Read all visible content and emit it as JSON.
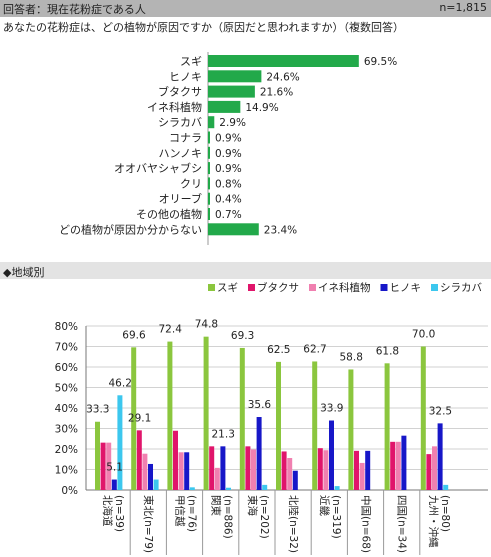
{
  "header": {
    "respondents_label": "回答者：現在花粉症である人",
    "n_label": "n=1,815"
  },
  "question": "あなたの花粉症は、どの植物が原因ですか（原因だと思われますか）（複数回答）",
  "section2_title": "◆地域別",
  "colors": {
    "green": "#22a94a",
    "sugi": "#8bc63e",
    "butakusa": "#e0156b",
    "ine": "#f080b0",
    "hinoki": "#1717c8",
    "shirakaba": "#3cc7ee"
  },
  "chart_data": [
    {
      "type": "bar",
      "orientation": "horizontal",
      "categories": [
        "スギ",
        "ヒノキ",
        "ブタクサ",
        "イネ科植物",
        "シラカバ",
        "コナラ",
        "ハンノキ",
        "オオバヤシャブシ",
        "クリ",
        "オリーブ",
        "その他の植物",
        "どの植物が原因か分からない"
      ],
      "values": [
        69.5,
        24.6,
        21.6,
        14.9,
        2.9,
        0.9,
        0.9,
        0.9,
        0.8,
        0.4,
        0.7,
        23.4
      ],
      "value_labels": [
        "69.5%",
        "24.6%",
        "21.6%",
        "14.9%",
        "2.9%",
        "0.9%",
        "0.9%",
        "0.9%",
        "0.8%",
        "0.4%",
        "0.7%",
        "23.4%"
      ],
      "xlim": [
        0,
        100
      ]
    },
    {
      "type": "bar",
      "orientation": "vertical",
      "ylim": [
        0,
        80
      ],
      "yticks": [
        "0%",
        "10%",
        "20%",
        "30%",
        "40%",
        "50%",
        "60%",
        "70%",
        "80%"
      ],
      "categories": [
        "北海道(n=39)",
        "東北(n=79)",
        "甲信越(n=76)",
        "関東(n=886)",
        "東海(n=202)",
        "北陸(n=32)",
        "近畿(n=319)",
        "中国(n=68)",
        "四国(n=34)",
        "九州・沖縄(n=80)"
      ],
      "category_labels": [
        [
          "北海道",
          "(n=39)"
        ],
        [
          "東北(n=79)"
        ],
        [
          "甲信越",
          "(n=76)"
        ],
        [
          "関東",
          "(n=886)"
        ],
        [
          "東海",
          "(n=202)"
        ],
        [
          "北陸(n=32)"
        ],
        [
          "近畿",
          "(n=319)"
        ],
        [
          "中国(n=68)"
        ],
        [
          "四国(n=34)"
        ],
        [
          "九州・沖縄",
          "(n=80)"
        ]
      ],
      "series": [
        {
          "name": "スギ",
          "values": [
            33.3,
            69.6,
            72.4,
            74.8,
            69.3,
            62.5,
            62.7,
            58.8,
            61.8,
            70.0
          ]
        },
        {
          "name": "ブタクサ",
          "values": [
            23.1,
            29.1,
            28.9,
            21.3,
            21.3,
            18.8,
            20.4,
            19.1,
            23.5,
            17.5
          ]
        },
        {
          "name": "イネ科植物",
          "values": [
            23.1,
            17.7,
            18.4,
            10.8,
            19.8,
            15.6,
            19.4,
            13.2,
            23.5,
            21.3
          ]
        },
        {
          "name": "ヒノキ",
          "values": [
            5.1,
            12.7,
            18.4,
            21.3,
            35.6,
            9.4,
            33.9,
            19.1,
            26.5,
            32.5
          ]
        },
        {
          "name": "シラカバ",
          "values": [
            46.2,
            5.1,
            1.3,
            1.1,
            2.5,
            0.0,
            1.9,
            0.0,
            0.0,
            2.5
          ]
        }
      ],
      "data_labels": [
        "33.3",
        "46.2",
        "5.1",
        "69.6",
        "29.1",
        "72.4",
        "74.8",
        "21.3",
        "69.3",
        "35.6",
        "62.5",
        "62.7",
        "33.9",
        "58.8",
        "61.8",
        "70.0",
        "32.5"
      ],
      "legend_position": "top"
    }
  ]
}
